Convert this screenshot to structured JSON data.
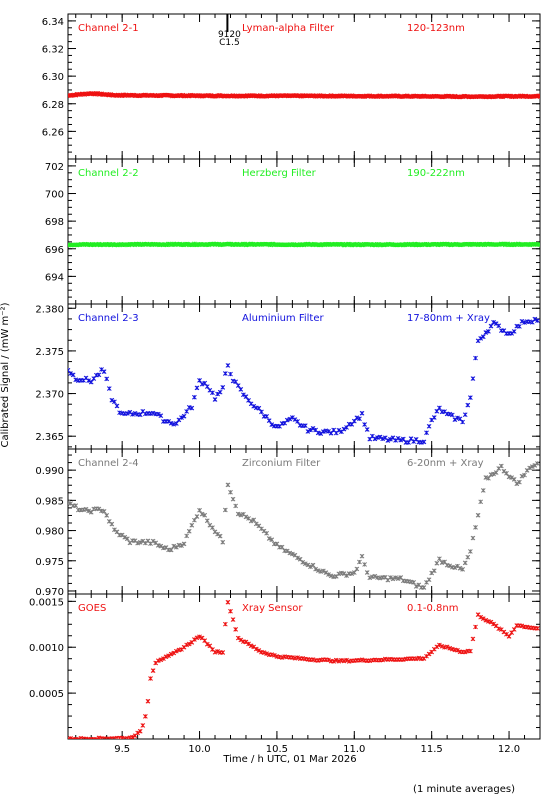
{
  "figure": {
    "xlabel": "Time / h UTC, 01 Mar 2026",
    "ylabel": "Calibrated Signal / (mW m⁻²)",
    "footer": "(1 minute averages)",
    "xlim": [
      9.15,
      12.2
    ],
    "xticks": [
      9.5,
      10.0,
      10.5,
      11.0,
      11.5,
      12.0
    ],
    "xtick_labels": [
      "9.5",
      "10.0",
      "10.5",
      "11.0",
      "11.5",
      "12.0"
    ],
    "marker_annotation": {
      "x": 10.18,
      "label_top": "9120",
      "label_bottom": "C1.5"
    }
  },
  "chart_data": [
    {
      "type": "scatter",
      "channel": "Channel 2-1",
      "filter": "Lyman-alpha Filter",
      "band": "120-123nm",
      "color": "#ee1111",
      "ylim": [
        6.24,
        6.345
      ],
      "yticks": [
        6.26,
        6.28,
        6.3,
        6.32,
        6.34
      ],
      "ytick_labels": [
        "6.26",
        "6.28",
        "6.30",
        "6.32",
        "6.34"
      ],
      "anchors": [
        [
          9.15,
          6.286
        ],
        [
          9.3,
          6.2875
        ],
        [
          9.45,
          6.2862
        ],
        [
          10.0,
          6.2858
        ],
        [
          10.6,
          6.2857
        ],
        [
          11.2,
          6.2855
        ],
        [
          11.7,
          6.2852
        ],
        [
          12.2,
          6.2855
        ]
      ],
      "noise": 0.0004
    },
    {
      "type": "scatter",
      "channel": "Channel 2-2",
      "filter": "Herzberg Filter",
      "band": "190-222nm",
      "color": "#22ee22",
      "ylim": [
        692.0,
        702.5
      ],
      "yticks": [
        694,
        696,
        698,
        700,
        702
      ],
      "ytick_labels": [
        "694",
        "696",
        "698",
        "700",
        "702"
      ],
      "anchors": [
        [
          9.15,
          696.3
        ],
        [
          10.0,
          696.32
        ],
        [
          11.0,
          696.3
        ],
        [
          12.2,
          696.32
        ]
      ],
      "noise": 0.04
    },
    {
      "type": "scatter",
      "channel": "Channel 2-3",
      "filter": "Aluminium Filter",
      "band": "17-80nm + Xray",
      "color": "#1111dd",
      "ylim": [
        2.3635,
        2.3805
      ],
      "yticks": [
        2.365,
        2.37,
        2.375,
        2.38
      ],
      "ytick_labels": [
        "2.365",
        "2.370",
        "2.375",
        "2.380"
      ],
      "anchors": [
        [
          9.15,
          2.3728
        ],
        [
          9.2,
          2.3718
        ],
        [
          9.3,
          2.3715
        ],
        [
          9.38,
          2.3728
        ],
        [
          9.43,
          2.3695
        ],
        [
          9.5,
          2.3675
        ],
        [
          9.6,
          2.3677
        ],
        [
          9.7,
          2.3678
        ],
        [
          9.78,
          2.3668
        ],
        [
          9.85,
          2.3665
        ],
        [
          9.95,
          2.3685
        ],
        [
          10.0,
          2.3715
        ],
        [
          10.05,
          2.371
        ],
        [
          10.1,
          2.3695
        ],
        [
          10.15,
          2.3705
        ],
        [
          10.18,
          2.3735
        ],
        [
          10.22,
          2.3715
        ],
        [
          10.3,
          2.3695
        ],
        [
          10.4,
          2.3678
        ],
        [
          10.5,
          2.366
        ],
        [
          10.6,
          2.367
        ],
        [
          10.7,
          2.3658
        ],
        [
          10.8,
          2.3655
        ],
        [
          10.9,
          2.3655
        ],
        [
          10.95,
          2.3662
        ],
        [
          11.05,
          2.3675
        ],
        [
          11.1,
          2.3648
        ],
        [
          11.3,
          2.3645
        ],
        [
          11.45,
          2.3645
        ],
        [
          11.5,
          2.3668
        ],
        [
          11.55,
          2.3682
        ],
        [
          11.6,
          2.3675
        ],
        [
          11.7,
          2.3668
        ],
        [
          11.75,
          2.3695
        ],
        [
          11.8,
          2.3762
        ],
        [
          11.9,
          2.3782
        ],
        [
          12.0,
          2.377
        ],
        [
          12.1,
          2.3785
        ],
        [
          12.2,
          2.3787
        ]
      ],
      "noise": 0.00025
    },
    {
      "type": "scatter",
      "channel": "Channel 2-4",
      "filter": "Zirconium Filter",
      "band": "6-20nm + Xray",
      "color": "#7a7a7a",
      "ylim": [
        0.9695,
        0.9935
      ],
      "yticks": [
        0.97,
        0.975,
        0.98,
        0.985,
        0.99
      ],
      "ytick_labels": [
        "0.970",
        "0.975",
        "0.980",
        "0.985",
        "0.990"
      ],
      "anchors": [
        [
          9.15,
          0.9845
        ],
        [
          9.25,
          0.9832
        ],
        [
          9.38,
          0.9835
        ],
        [
          9.45,
          0.98
        ],
        [
          9.55,
          0.9782
        ],
        [
          9.7,
          0.978
        ],
        [
          9.8,
          0.9768
        ],
        [
          9.9,
          0.978
        ],
        [
          10.0,
          0.9835
        ],
        [
          10.1,
          0.98
        ],
        [
          10.15,
          0.9782
        ],
        [
          10.18,
          0.988
        ],
        [
          10.25,
          0.983
        ],
        [
          10.35,
          0.9815
        ],
        [
          10.5,
          0.9775
        ],
        [
          10.6,
          0.976
        ],
        [
          10.7,
          0.9745
        ],
        [
          10.85,
          0.9725
        ],
        [
          11.0,
          0.973
        ],
        [
          11.05,
          0.9755
        ],
        [
          11.1,
          0.9722
        ],
        [
          11.3,
          0.972
        ],
        [
          11.45,
          0.9705
        ],
        [
          11.55,
          0.9752
        ],
        [
          11.6,
          0.9745
        ],
        [
          11.7,
          0.9735
        ],
        [
          11.75,
          0.9765
        ],
        [
          11.85,
          0.9885
        ],
        [
          11.95,
          0.9905
        ],
        [
          12.05,
          0.9878
        ],
        [
          12.15,
          0.9908
        ],
        [
          12.2,
          0.9912
        ]
      ],
      "noise": 0.0003
    },
    {
      "type": "scatter",
      "channel": "GOES",
      "filter": "Xray Sensor",
      "band": "0.1-0.8nm",
      "color": "#ee1111",
      "ylim": [
        0.0,
        0.00158
      ],
      "yticks": [
        0.0005,
        0.001,
        0.0015
      ],
      "ytick_labels": [
        "0.0005",
        "0.0010",
        "0.0015"
      ],
      "anchors": [
        [
          9.15,
          0.0
        ],
        [
          9.55,
          1e-05
        ],
        [
          9.62,
          8e-05
        ],
        [
          9.66,
          0.0003
        ],
        [
          9.68,
          0.00065
        ],
        [
          9.72,
          0.00085
        ],
        [
          9.8,
          0.0009
        ],
        [
          9.9,
          0.001
        ],
        [
          10.0,
          0.00112
        ],
        [
          10.05,
          0.00104
        ],
        [
          10.1,
          0.00095
        ],
        [
          10.15,
          0.00095
        ],
        [
          10.18,
          0.0015
        ],
        [
          10.2,
          0.0014
        ],
        [
          10.25,
          0.0011
        ],
        [
          10.4,
          0.00095
        ],
        [
          10.5,
          0.0009
        ],
        [
          10.7,
          0.00087
        ],
        [
          10.9,
          0.00085
        ],
        [
          11.1,
          0.00086
        ],
        [
          11.3,
          0.00087
        ],
        [
          11.45,
          0.00088
        ],
        [
          11.55,
          0.00102
        ],
        [
          11.7,
          0.00095
        ],
        [
          11.75,
          0.00096
        ],
        [
          11.8,
          0.00135
        ],
        [
          11.9,
          0.00125
        ],
        [
          12.0,
          0.00112
        ],
        [
          12.05,
          0.00124
        ],
        [
          12.2,
          0.0012
        ]
      ],
      "noise": 8e-06
    }
  ]
}
